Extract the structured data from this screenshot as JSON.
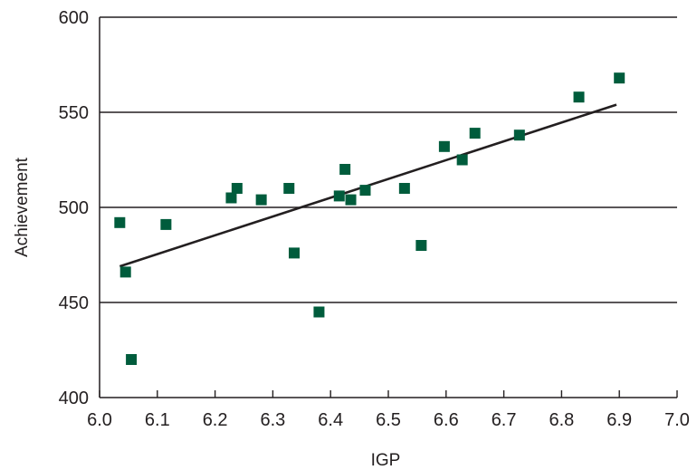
{
  "chart_data": {
    "type": "scatter",
    "title": "",
    "xlabel": "IGP",
    "ylabel": "Achievement",
    "xlim": [
      6.0,
      7.0
    ],
    "ylim": [
      400,
      600
    ],
    "xticks": [
      "6.0",
      "6.1",
      "6.2",
      "6.3",
      "6.4",
      "6.5",
      "6.6",
      "6.7",
      "6.8",
      "6.9",
      "7.0"
    ],
    "yticks": [
      "400",
      "450",
      "500",
      "550",
      "600"
    ],
    "grid": "horizontal",
    "legend": "none",
    "series": [
      {
        "marker": "square",
        "color": "#005c3c",
        "points": [
          [
            6.035,
            492
          ],
          [
            6.045,
            466
          ],
          [
            6.055,
            420
          ],
          [
            6.115,
            491
          ],
          [
            6.228,
            505
          ],
          [
            6.238,
            510
          ],
          [
            6.28,
            504
          ],
          [
            6.328,
            510
          ],
          [
            6.337,
            476
          ],
          [
            6.38,
            445
          ],
          [
            6.415,
            506
          ],
          [
            6.425,
            520
          ],
          [
            6.435,
            504
          ],
          [
            6.46,
            509
          ],
          [
            6.528,
            510
          ],
          [
            6.557,
            480
          ],
          [
            6.597,
            532
          ],
          [
            6.628,
            525
          ],
          [
            6.65,
            539
          ],
          [
            6.727,
            538
          ],
          [
            6.83,
            558
          ],
          [
            6.9,
            568
          ]
        ]
      }
    ],
    "trendline": {
      "type": "linear",
      "x": [
        6.035,
        6.895
      ],
      "y": [
        469,
        554
      ]
    }
  }
}
